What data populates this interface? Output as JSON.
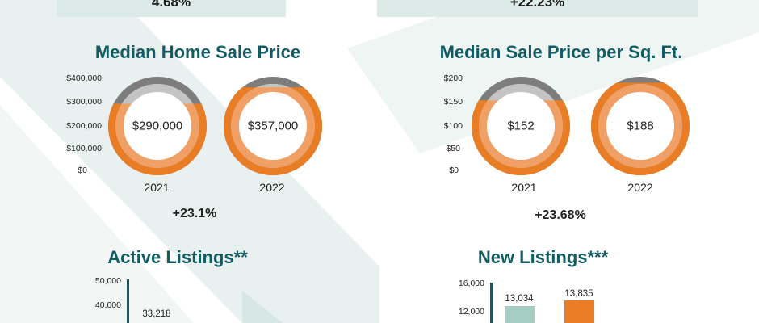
{
  "top_boxes": [
    {
      "text": "4.68%"
    },
    {
      "text": "+22.23%"
    }
  ],
  "colors": {
    "teal": "#125c63",
    "orange": "#e87d26",
    "orange_light": "#f0a064",
    "gray": "#7d7d7d",
    "gray_light": "#c4c4c4",
    "mint": "#a6cdc4"
  },
  "chart_data": [
    {
      "type": "donut",
      "title": "Median Home Sale Price",
      "ylim": [
        0,
        400000
      ],
      "yticks": [
        "$400,000",
        "$300,000",
        "$200,000",
        "$100,000",
        "$0"
      ],
      "categories": [
        "2021",
        "2022"
      ],
      "values": [
        290000,
        357000
      ],
      "value_labels": [
        "$290,000",
        "$357,000"
      ],
      "change": "+23.1%"
    },
    {
      "type": "donut",
      "title": "Median Sale Price per Sq. Ft.",
      "ylim": [
        0,
        200
      ],
      "yticks": [
        "$200",
        "$150",
        "$100",
        "$50",
        "$0"
      ],
      "categories": [
        "2021",
        "2022"
      ],
      "values": [
        152,
        188
      ],
      "value_labels": [
        "$152",
        "$188"
      ],
      "change": "+23.68%"
    },
    {
      "type": "bar",
      "title": "Active Listings**",
      "ylim": [
        0,
        50000
      ],
      "yticks": [
        "50,000",
        "40,000"
      ],
      "categories": [
        ""
      ],
      "values": [
        33218
      ],
      "value_labels": [
        "33,218"
      ]
    },
    {
      "type": "bar",
      "title": "New Listings***",
      "ylim": [
        0,
        16000
      ],
      "yticks": [
        "16,000",
        "12,000"
      ],
      "categories": [
        "",
        ""
      ],
      "values": [
        13034,
        13835
      ],
      "value_labels": [
        "13,034",
        "13,835"
      ]
    }
  ]
}
